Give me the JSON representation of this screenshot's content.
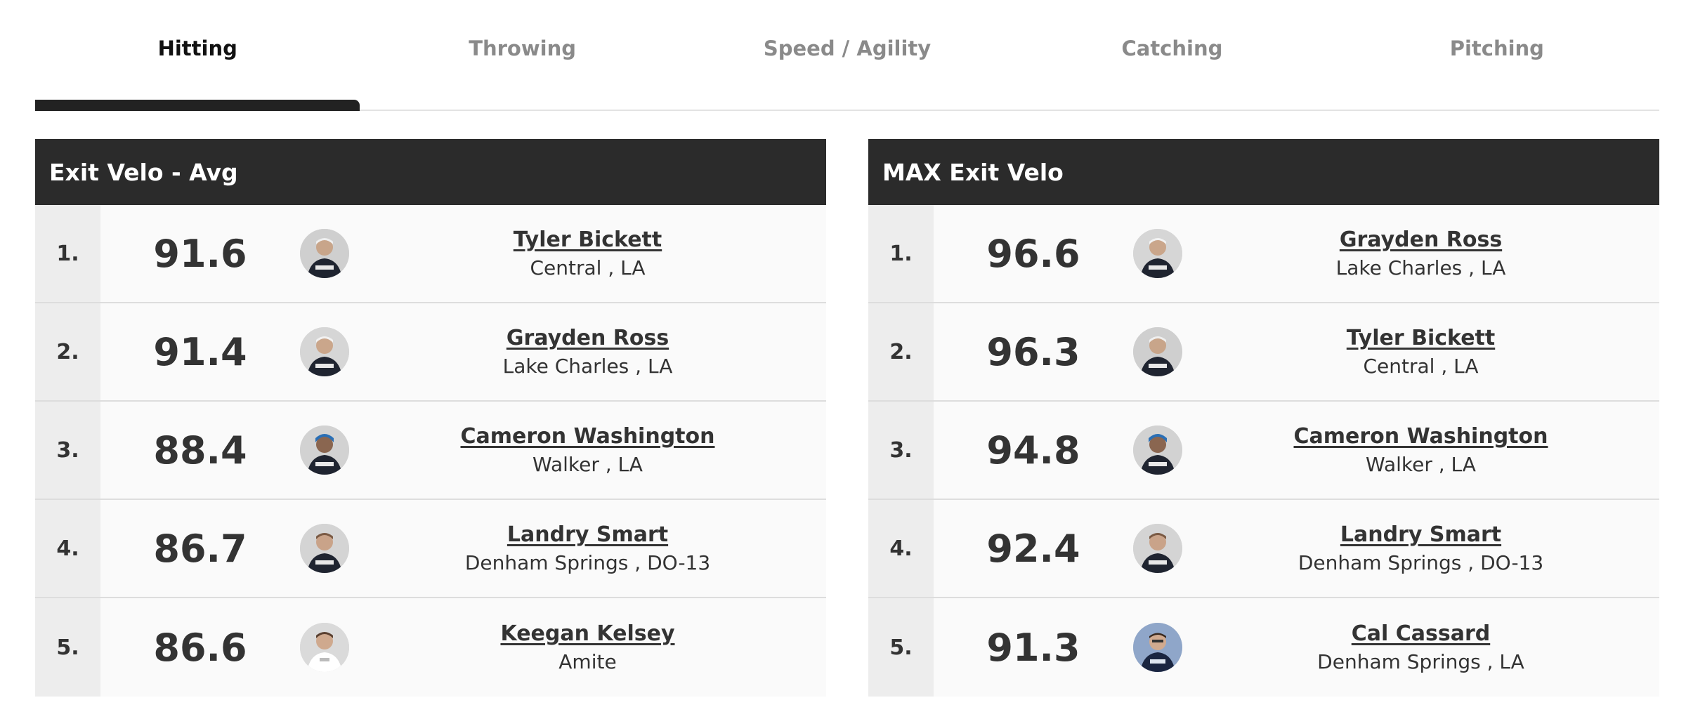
{
  "tabs": [
    {
      "label": "Hitting",
      "active": true
    },
    {
      "label": "Throwing",
      "active": false
    },
    {
      "label": "Speed / Agility",
      "active": false
    },
    {
      "label": "Catching",
      "active": false
    },
    {
      "label": "Pitching",
      "active": false
    }
  ],
  "panels": [
    {
      "title": "Exit Velo - Avg",
      "rows": [
        {
          "rank": "1.",
          "value": "91.6",
          "name": "Tyler Bickett",
          "location": "Central , LA"
        },
        {
          "rank": "2.",
          "value": "91.4",
          "name": "Grayden Ross",
          "location": "Lake Charles , LA"
        },
        {
          "rank": "3.",
          "value": "88.4",
          "name": "Cameron Washington",
          "location": "Walker , LA"
        },
        {
          "rank": "4.",
          "value": "86.7",
          "name": "Landry Smart",
          "location": "Denham Springs , DO-13"
        },
        {
          "rank": "5.",
          "value": "86.6",
          "name": "Keegan Kelsey",
          "location": "Amite"
        }
      ]
    },
    {
      "title": "MAX Exit Velo",
      "rows": [
        {
          "rank": "1.",
          "value": "96.6",
          "name": "Grayden Ross",
          "location": "Lake Charles , LA"
        },
        {
          "rank": "2.",
          "value": "96.3",
          "name": "Tyler Bickett",
          "location": "Central , LA"
        },
        {
          "rank": "3.",
          "value": "94.8",
          "name": "Cameron Washington",
          "location": "Walker , LA"
        },
        {
          "rank": "4.",
          "value": "92.4",
          "name": "Landry Smart",
          "location": "Denham Springs , DO-13"
        },
        {
          "rank": "5.",
          "value": "91.3",
          "name": "Cal Cassard",
          "location": "Denham Springs , LA"
        }
      ]
    }
  ],
  "avatar_icon": "player-photo-icon"
}
